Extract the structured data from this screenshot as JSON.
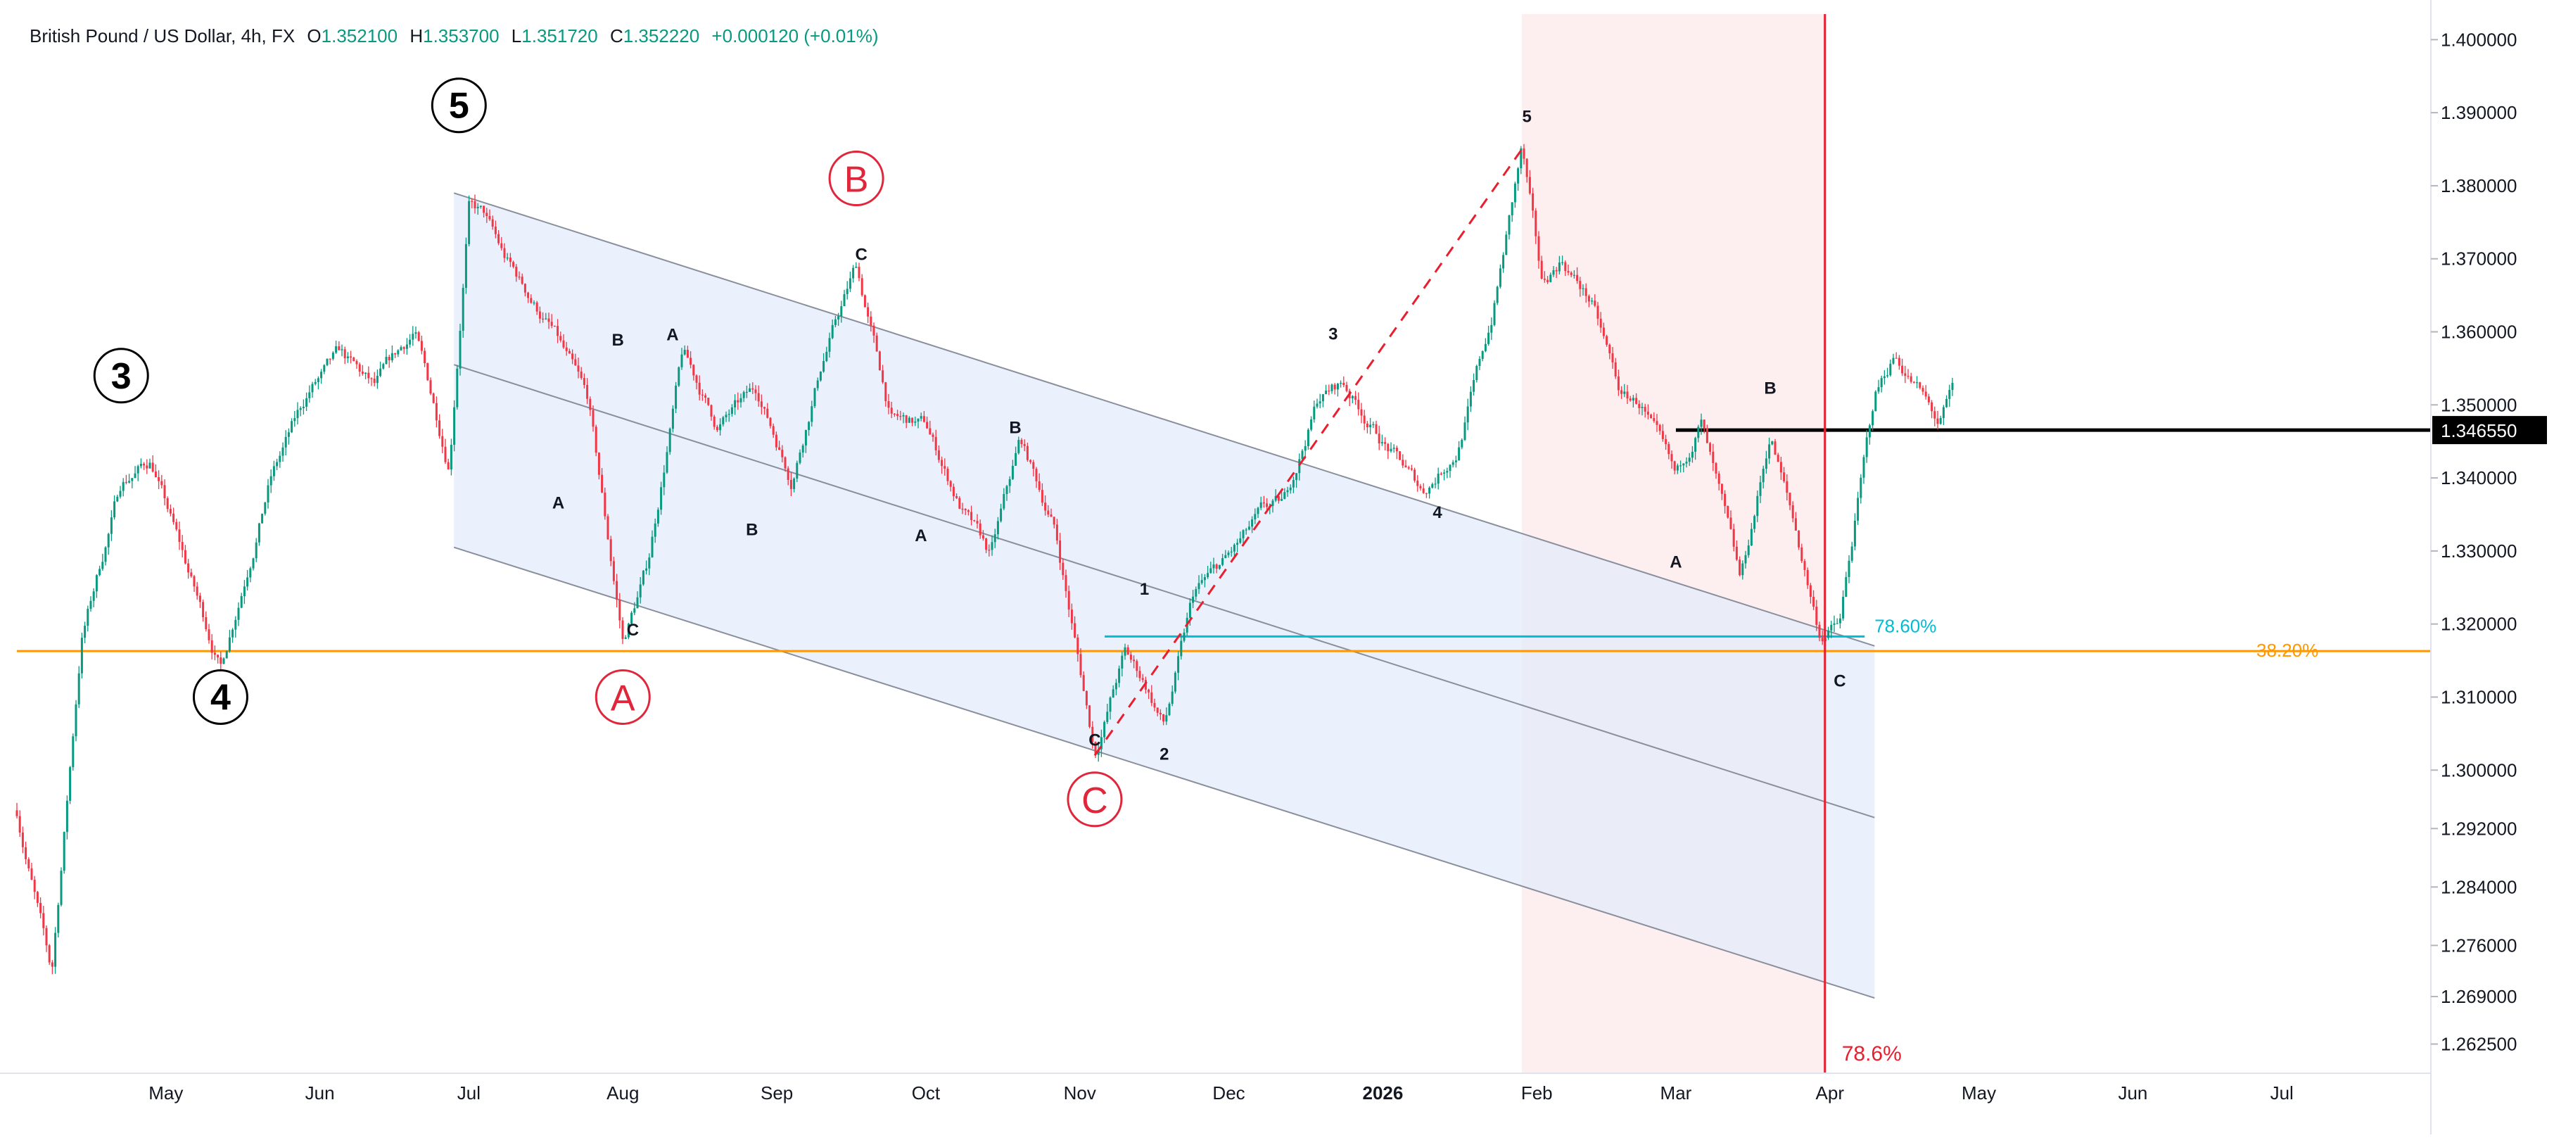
{
  "header": {
    "symbol": "British Pound / US Dollar, 4h, FX",
    "open_label": "O",
    "open": "1.352100",
    "high_label": "H",
    "high": "1.353700",
    "low_label": "L",
    "low": "1.351720",
    "close_label": "C",
    "close": "1.352220",
    "change": "+0.000120 (+0.01%)"
  },
  "price_axis": {
    "labels": [
      "1.400000",
      "1.390000",
      "1.380000",
      "1.370000",
      "1.360000",
      "1.350000",
      "1.340000",
      "1.330000",
      "1.320000",
      "1.310000",
      "1.300000",
      "1.292000",
      "1.284000",
      "1.276000",
      "1.269000",
      "1.262500"
    ],
    "current_price": "1.346550"
  },
  "time_axis": {
    "labels": [
      "May",
      "Jun",
      "Jul",
      "Aug",
      "Sep",
      "Oct",
      "Nov",
      "Dec",
      "2026",
      "Feb",
      "Mar",
      "Apr",
      "May",
      "Jun",
      "Jul"
    ]
  },
  "colors": {
    "up": "#089981",
    "down": "#f23645",
    "channel_fill": "#e3ebfb",
    "highlight_zone": "#fdeef0",
    "fib_cyan": "#00bcd4",
    "fib_orange": "#ff9800",
    "red_line": "#e91e2f",
    "wave_red": "#e0263a"
  },
  "annotations": {
    "major_waves": [
      "3",
      "4",
      "5"
    ],
    "corrective_waves": [
      "A",
      "B",
      "C"
    ],
    "minor_labels": [
      "A",
      "B",
      "C",
      "A",
      "B",
      "C",
      "A",
      "B",
      "C",
      "1",
      "2",
      "3",
      "4",
      "5",
      "A",
      "B",
      "C"
    ],
    "fib_levels": [
      "78.60%",
      "38.20%",
      "78.6%"
    ]
  },
  "chart_data": {
    "type": "candlestick",
    "title": "British Pound / US Dollar, 4h, FX",
    "xlabel": "",
    "ylabel": "",
    "x_range": [
      "2025-04-01",
      "2026-07-31"
    ],
    "ylim": [
      1.2585,
      1.4035
    ],
    "path": [
      [
        "2025-04-01",
        1.2945
      ],
      [
        "2025-04-08",
        1.2718
      ],
      [
        "2025-04-14",
        1.318
      ],
      [
        "2025-04-22",
        1.3395
      ],
      [
        "2025-04-28",
        1.3425
      ],
      [
        "2025-05-06",
        1.326
      ],
      [
        "2025-05-12",
        1.314
      ],
      [
        "2025-05-22",
        1.34
      ],
      [
        "2025-05-30",
        1.352
      ],
      [
        "2025-06-05",
        1.3565
      ],
      [
        "2025-06-12",
        1.352
      ],
      [
        "2025-06-20",
        1.36
      ],
      [
        "2025-06-27",
        1.342
      ],
      [
        "2025-07-01",
        1.3775
      ],
      [
        "2025-07-04",
        1.376
      ],
      [
        "2025-07-08",
        1.37
      ],
      [
        "2025-07-18",
        1.36
      ],
      [
        "2025-07-25",
        1.35
      ],
      [
        "2025-08-01",
        1.3175
      ],
      [
        "2025-08-06",
        1.328
      ],
      [
        "2025-08-13",
        1.357
      ],
      [
        "2025-08-20",
        1.347
      ],
      [
        "2025-08-28",
        1.352
      ],
      [
        "2025-09-04",
        1.34
      ],
      [
        "2025-09-10",
        1.356
      ],
      [
        "2025-09-17",
        1.369
      ],
      [
        "2025-09-20",
        1.36
      ],
      [
        "2025-09-24",
        1.348
      ],
      [
        "2025-10-01",
        1.347
      ],
      [
        "2025-10-08",
        1.336
      ],
      [
        "2025-10-14",
        1.329
      ],
      [
        "2025-10-20",
        1.345
      ],
      [
        "2025-10-27",
        1.333
      ],
      [
        "2025-11-04",
        1.3025
      ],
      [
        "2025-11-10",
        1.316
      ],
      [
        "2025-11-14",
        1.312
      ],
      [
        "2025-11-18",
        1.306
      ],
      [
        "2025-11-24",
        1.324
      ],
      [
        "2025-12-01",
        1.329
      ],
      [
        "2025-12-08",
        1.335
      ],
      [
        "2025-12-12",
        1.336
      ],
      [
        "2025-12-19",
        1.351
      ],
      [
        "2025-12-24",
        1.353
      ],
      [
        "2026-01-01",
        1.345
      ],
      [
        "2026-01-09",
        1.338
      ],
      [
        "2026-01-16",
        1.344
      ],
      [
        "2026-01-23",
        1.362
      ],
      [
        "2026-01-29",
        1.385
      ],
      [
        "2026-02-02",
        1.366
      ],
      [
        "2026-02-06",
        1.37
      ],
      [
        "2026-02-12",
        1.364
      ],
      [
        "2026-02-18",
        1.351
      ],
      [
        "2026-02-22",
        1.35
      ],
      [
        "2026-03-01",
        1.339
      ],
      [
        "2026-03-06",
        1.348
      ],
      [
        "2026-03-14",
        1.325
      ],
      [
        "2026-03-20",
        1.346
      ],
      [
        "2026-03-25",
        1.333
      ],
      [
        "2026-03-30",
        1.3185
      ],
      [
        "2026-04-03",
        1.32
      ],
      [
        "2026-04-07",
        1.338
      ],
      [
        "2026-04-10",
        1.351
      ],
      [
        "2026-04-14",
        1.357
      ],
      [
        "2026-04-19",
        1.352
      ],
      [
        "2026-04-23",
        1.347
      ],
      [
        "2026-04-26",
        1.352
      ]
    ],
    "last_price": 1.34655,
    "horizontal_lines": [
      {
        "price": 1.3163,
        "label": "38.20%",
        "color": "#ff9800"
      },
      {
        "price": 1.3183,
        "label": "78.60%",
        "color": "#00bcd4",
        "from": "2025-11-06",
        "to": "2026-04-08"
      },
      {
        "price": 1.34655,
        "color": "#000000",
        "from": "2026-03-01"
      }
    ],
    "vertical_lines": [
      {
        "date": "2026-03-31",
        "label": "78.6%",
        "color": "#e91e2f"
      }
    ],
    "highlight_zone": {
      "from": "2026-01-29",
      "to": "2026-03-31"
    },
    "channel": {
      "from": "2025-06-28",
      "to": "2026-04-10",
      "upper": [
        1.379,
        1.317
      ],
      "middle": [
        1.3555,
        1.2935
      ],
      "lower": [
        1.3305,
        1.2688
      ]
    },
    "wave_labels": [
      {
        "text": "3",
        "date": "2025-04-22",
        "price": 1.354,
        "style": "major"
      },
      {
        "text": "4",
        "date": "2025-05-12",
        "price": 1.31,
        "style": "major"
      },
      {
        "text": "5",
        "date": "2025-06-29",
        "price": 1.391,
        "style": "major"
      },
      {
        "text": "A",
        "date": "2025-08-01",
        "price": 1.31,
        "style": "red"
      },
      {
        "text": "B",
        "date": "2025-09-17",
        "price": 1.381,
        "style": "red"
      },
      {
        "text": "C",
        "date": "2025-11-04",
        "price": 1.296,
        "style": "red"
      },
      {
        "text": "A",
        "date": "2025-07-19",
        "price": 1.3367,
        "style": "minor"
      },
      {
        "text": "B",
        "date": "2025-07-31",
        "price": 1.359,
        "style": "minor"
      },
      {
        "text": "C",
        "date": "2025-08-03",
        "price": 1.3193,
        "style": "minor"
      },
      {
        "text": "A",
        "date": "2025-08-11",
        "price": 1.3597,
        "style": "minor"
      },
      {
        "text": "B",
        "date": "2025-08-27",
        "price": 1.333,
        "style": "minor"
      },
      {
        "text": "C",
        "date": "2025-09-18",
        "price": 1.3707,
        "style": "minor"
      },
      {
        "text": "A",
        "date": "2025-09-30",
        "price": 1.3322,
        "style": "minor"
      },
      {
        "text": "B",
        "date": "2025-10-19",
        "price": 1.347,
        "style": "minor"
      },
      {
        "text": "C",
        "date": "2025-11-04",
        "price": 1.3042,
        "style": "minor"
      },
      {
        "text": "1",
        "date": "2025-11-14",
        "price": 1.3249,
        "style": "minor"
      },
      {
        "text": "2",
        "date": "2025-11-18",
        "price": 1.3023,
        "style": "minor"
      },
      {
        "text": "3",
        "date": "2025-12-22",
        "price": 1.3598,
        "style": "minor"
      },
      {
        "text": "4",
        "date": "2026-01-12",
        "price": 1.3354,
        "style": "minor"
      },
      {
        "text": "5",
        "date": "2026-01-30",
        "price": 1.3896,
        "style": "minor"
      },
      {
        "text": "A",
        "date": "2026-03-01",
        "price": 1.3286,
        "style": "minor"
      },
      {
        "text": "B",
        "date": "2026-03-20",
        "price": 1.3524,
        "style": "minor"
      },
      {
        "text": "C",
        "date": "2026-04-03",
        "price": 1.3123,
        "style": "minor"
      }
    ],
    "dashed_impulse": [
      [
        "2025-11-04",
        1.302
      ],
      [
        "2026-01-29",
        1.385
      ]
    ]
  }
}
